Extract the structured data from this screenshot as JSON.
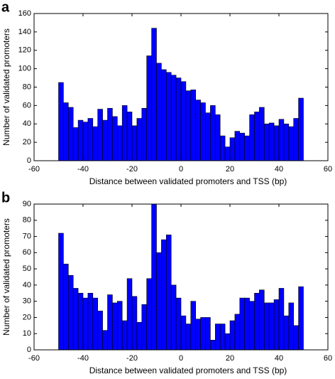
{
  "chart_data": [
    {
      "type": "histogram",
      "panel": "a",
      "xlabel": "Distance between validated promoters and TSS (bp)",
      "ylabel": "Number of validated promoters",
      "color": "#0000ff",
      "bins": [
        -50,
        -48,
        -46,
        -44,
        -42,
        -40,
        -38,
        -36,
        -34,
        -32,
        -30,
        -28,
        -26,
        -24,
        -22,
        -20,
        -18,
        -16,
        -14,
        -12,
        -10,
        -8,
        -6,
        -4,
        -2,
        0,
        2,
        4,
        6,
        8,
        10,
        12,
        14,
        16,
        18,
        20,
        22,
        24,
        26,
        28,
        30,
        32,
        34,
        36,
        38,
        40,
        42,
        44,
        46,
        48,
        50
      ],
      "values": [
        85,
        63,
        58,
        36,
        44,
        42,
        46,
        37,
        56,
        44,
        57,
        48,
        38,
        60,
        53,
        38,
        46,
        57,
        114,
        144,
        106,
        99,
        96,
        93,
        90,
        86,
        76,
        77,
        66,
        63,
        52,
        60,
        50,
        27,
        15,
        25,
        32,
        30,
        27,
        50,
        53,
        58,
        40,
        41,
        38,
        45,
        40,
        37,
        46,
        68
      ],
      "xlim": [
        -60,
        60
      ],
      "xticks": [
        -60,
        -40,
        -20,
        0,
        20,
        40,
        60
      ],
      "ylim": [
        0,
        160
      ],
      "yticks": [
        0,
        20,
        40,
        60,
        80,
        100,
        120,
        140,
        160
      ]
    },
    {
      "type": "histogram",
      "panel": "b",
      "xlabel": "Distance between validated promoters and TSS (bp)",
      "ylabel": "Number of validated promoters",
      "color": "#0000ff",
      "bins": [
        -50,
        -48,
        -46,
        -44,
        -42,
        -40,
        -38,
        -36,
        -34,
        -32,
        -30,
        -28,
        -26,
        -24,
        -22,
        -20,
        -18,
        -16,
        -14,
        -12,
        -10,
        -8,
        -6,
        -4,
        -2,
        0,
        2,
        4,
        6,
        8,
        10,
        12,
        14,
        16,
        18,
        20,
        22,
        24,
        26,
        28,
        30,
        32,
        34,
        36,
        38,
        40,
        42,
        44,
        46,
        48,
        50
      ],
      "values": [
        72,
        53,
        46,
        38,
        35,
        32,
        35,
        32,
        24,
        12,
        34,
        29,
        30,
        18,
        44,
        33,
        17,
        28,
        44,
        90,
        60,
        68,
        71,
        40,
        32,
        21,
        16,
        30,
        19,
        20,
        20,
        6,
        16,
        16,
        10,
        18,
        22,
        32,
        32,
        30,
        35,
        37,
        29,
        29,
        31,
        38,
        21,
        29,
        15,
        39
      ],
      "xlim": [
        -60,
        60
      ],
      "xticks": [
        -60,
        -40,
        -20,
        0,
        20,
        40,
        60
      ],
      "ylim": [
        0,
        90
      ],
      "yticks": [
        0,
        10,
        20,
        30,
        40,
        50,
        60,
        70,
        80,
        90
      ]
    }
  ]
}
